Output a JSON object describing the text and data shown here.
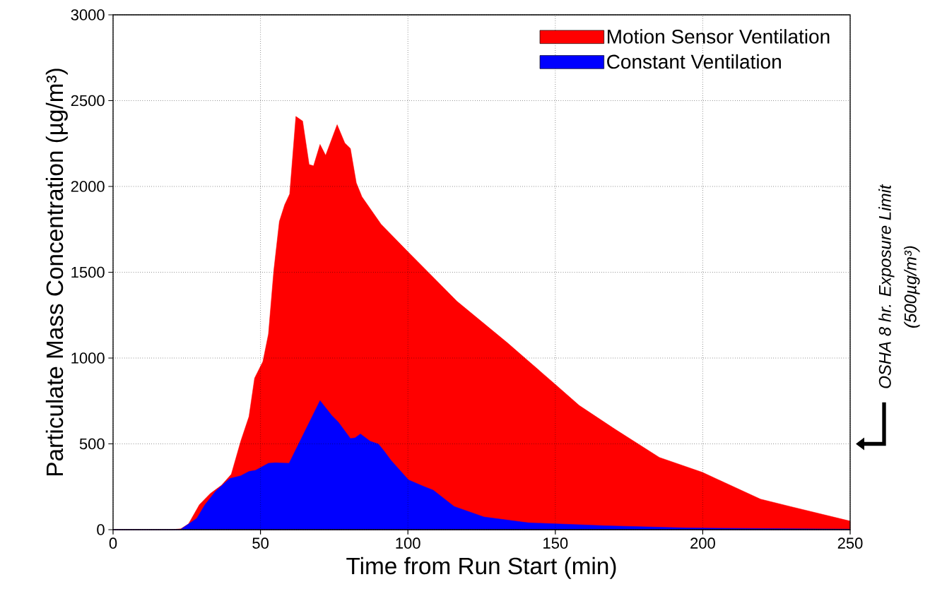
{
  "chart_data": {
    "type": "area",
    "xlabel": "Time from Run Start (min)",
    "ylabel": "Particulate Mass Concentration (µg/m³)",
    "xlim": [
      0,
      250
    ],
    "xticks": [
      0,
      50,
      100,
      150,
      200,
      250
    ],
    "ylim": [
      0,
      3000
    ],
    "yticks": [
      0,
      500,
      1000,
      1500,
      2000,
      2500,
      3000
    ],
    "grid": true,
    "legend": "top right",
    "series": [
      {
        "name": "Motion Sensor Ventilation",
        "color": "#ff0000",
        "x": [
          0,
          20,
          23,
          25.6,
          29.3,
          33,
          36.8,
          40.1,
          43.3,
          46.1,
          48,
          50.8,
          52.7,
          54.5,
          56.4,
          58.2,
          59.9,
          62,
          64.3,
          66.5,
          68,
          70.2,
          72.1,
          76,
          78.6,
          80.5,
          82.5,
          84.4,
          90.9,
          100.2,
          116.7,
          133.8,
          150.1,
          158.1,
          170.2,
          185.3,
          199.9,
          219.6,
          229.7,
          250
        ],
        "values": [
          0,
          0,
          5,
          34,
          146,
          211,
          259,
          323,
          515,
          659,
          883,
          979,
          1140,
          1508,
          1796,
          1893,
          1956,
          2408,
          2381,
          2128,
          2120,
          2245,
          2181,
          2360,
          2253,
          2221,
          2021,
          1940,
          1780,
          1616,
          1330,
          1088,
          845,
          724,
          586,
          421,
          334,
          178,
          135,
          50
        ]
      },
      {
        "name": "Constant Ventilation",
        "color": "#0000ff",
        "x": [
          0,
          22.8,
          28.4,
          31.2,
          34.9,
          39.6,
          43.3,
          46.1,
          48.3,
          52.7,
          55,
          59.7,
          70.2,
          74.1,
          76.4,
          80.5,
          82.1,
          83.9,
          87.2,
          90,
          91.9,
          94.3,
          100.2,
          105.5,
          108.6,
          115.7,
          125.8,
          140.9,
          167,
          194.4,
          250
        ],
        "values": [
          0,
          0,
          66,
          146,
          226,
          298,
          314,
          339,
          346,
          387,
          390,
          387,
          752,
          667,
          627,
          531,
          535,
          558,
          515,
          499,
          459,
          403,
          290,
          251,
          230,
          135,
          74,
          40,
          23,
          10,
          3
        ]
      }
    ],
    "annotations": [
      "OSHA 8 hr. Exposure Limit",
      "(500µg/m³)"
    ]
  }
}
